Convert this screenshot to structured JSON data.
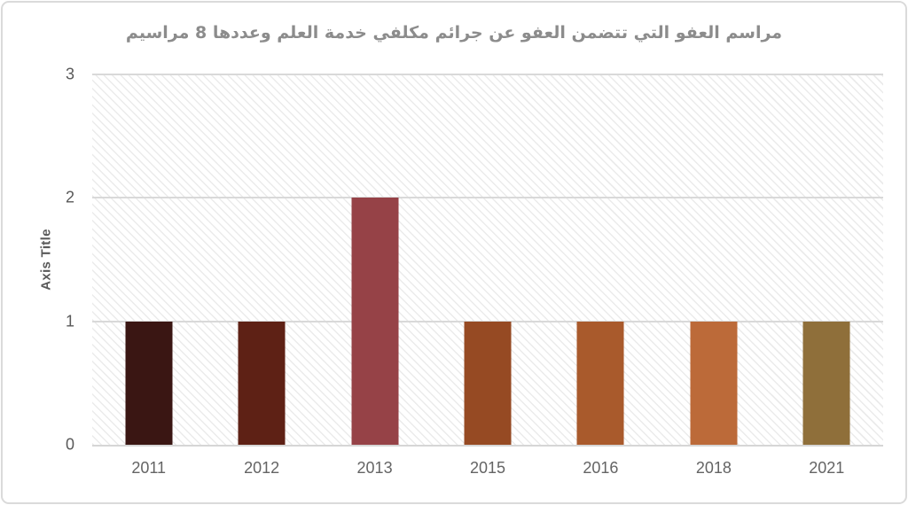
{
  "chart_title": "مراسم العفو التي تتضمن العفو عن جرائم مكلفي خدمة العلم وعددها 8 مراسيم",
  "chart_data": {
    "type": "bar",
    "title": "مراسم العفو التي تتضمن العفو عن جرائم مكلفي خدمة العلم وعددها 8 مراسيم",
    "categories": [
      "2011",
      "2012",
      "2013",
      "2015",
      "2016",
      "2018",
      "2021"
    ],
    "values": [
      1,
      1,
      2,
      1,
      1,
      1,
      1
    ],
    "bar_colors": [
      "#3a1613",
      "#5e2115",
      "#964247",
      "#964a23",
      "#a95a2c",
      "#bc6a39",
      "#8f6f3a"
    ],
    "xlabel": "",
    "ylabel": "Axis Title",
    "ylim": [
      0,
      3
    ],
    "yticks": [
      0,
      1,
      2,
      3
    ],
    "grid": true,
    "legend": "none",
    "plot_background": "diagonal-hatch"
  },
  "colors": {
    "frame_border": "#dadada",
    "gridline": "#d9d9d9",
    "hatch": "#ebebeb",
    "axis_text": "#595959",
    "category_text": "#646464",
    "title_text": "#8c8c8c"
  }
}
